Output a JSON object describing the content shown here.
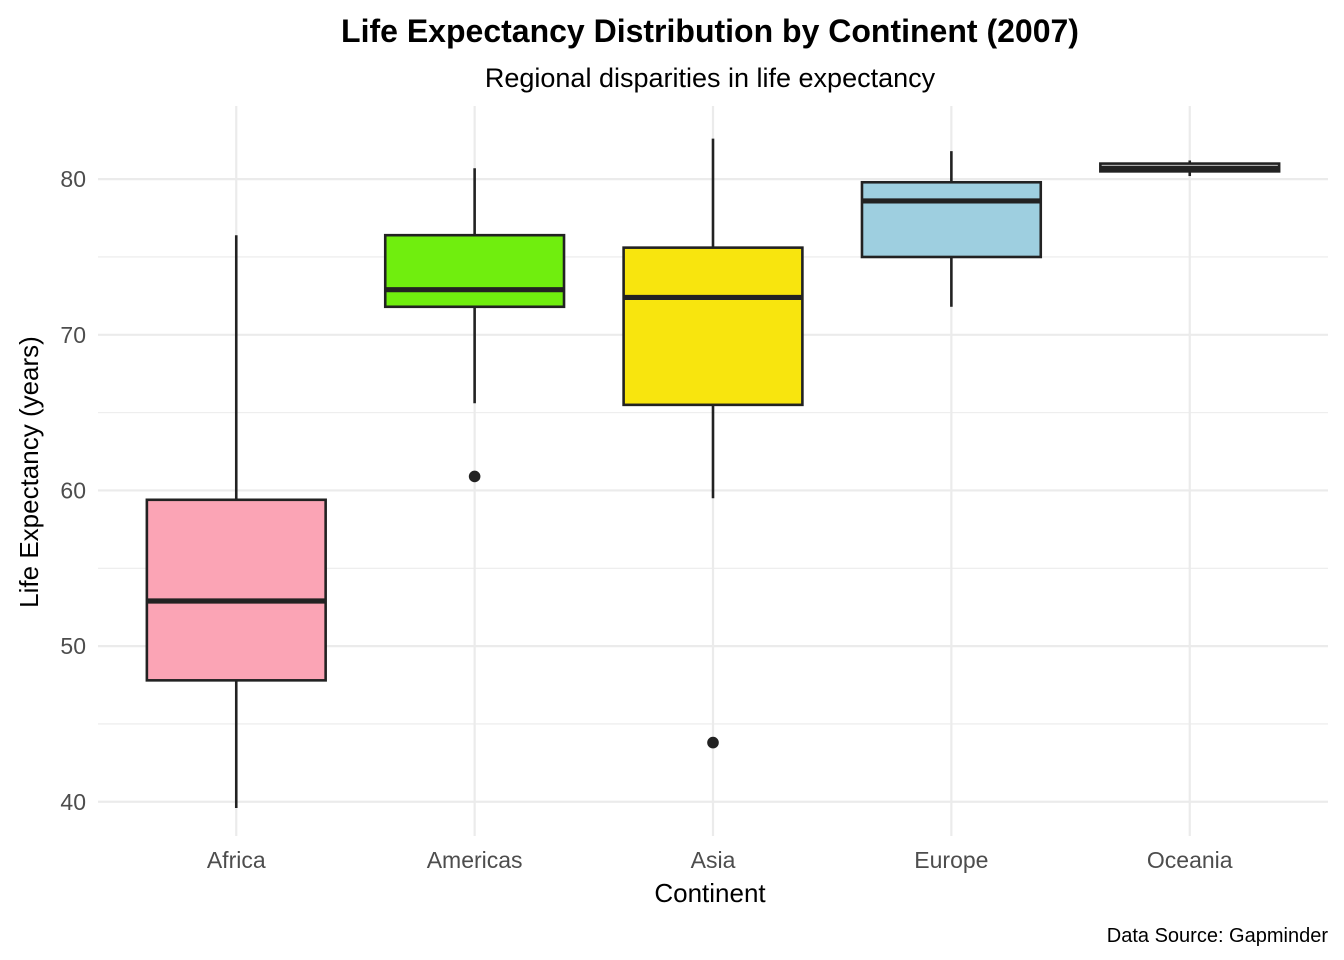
{
  "chart_data": {
    "type": "boxplot",
    "title": "Life Expectancy Distribution by Continent (2007)",
    "subtitle": "Regional disparities in life expectancy",
    "xlabel": "Continent",
    "ylabel": "Life Expectancy (years)",
    "caption": "Data Source: Gapminder",
    "ylim": [
      37.8,
      84.7
    ],
    "yticks": [
      40,
      50,
      60,
      70,
      80
    ],
    "yticks_minor": [
      45,
      55,
      65,
      75
    ],
    "grid": true,
    "legend": "none",
    "categories": [
      "Africa",
      "Americas",
      "Asia",
      "Europe",
      "Oceania"
    ],
    "boxes": [
      {
        "category": "Africa",
        "whisker_low": 39.6,
        "q1": 47.8,
        "median": 52.9,
        "q3": 59.4,
        "whisker_high": 76.4,
        "outliers": [],
        "color": "#FBA4B5"
      },
      {
        "category": "Americas",
        "whisker_low": 65.6,
        "q1": 71.8,
        "median": 72.9,
        "q3": 76.4,
        "whisker_high": 80.7,
        "outliers": [
          60.9
        ],
        "color": "#70EE0E"
      },
      {
        "category": "Asia",
        "whisker_low": 59.5,
        "q1": 65.5,
        "median": 72.4,
        "q3": 75.6,
        "whisker_high": 82.6,
        "outliers": [
          43.8
        ],
        "color": "#F8E50E"
      },
      {
        "category": "Europe",
        "whisker_low": 71.8,
        "q1": 75.0,
        "median": 78.6,
        "q3": 79.8,
        "whisker_high": 81.8,
        "outliers": [],
        "color": "#9ECFE0"
      },
      {
        "category": "Oceania",
        "whisker_low": 80.2,
        "q1": 80.5,
        "median": 80.7,
        "q3": 81.0,
        "whisker_high": 81.2,
        "outliers": [],
        "color": "#FFFFFF"
      }
    ]
  }
}
